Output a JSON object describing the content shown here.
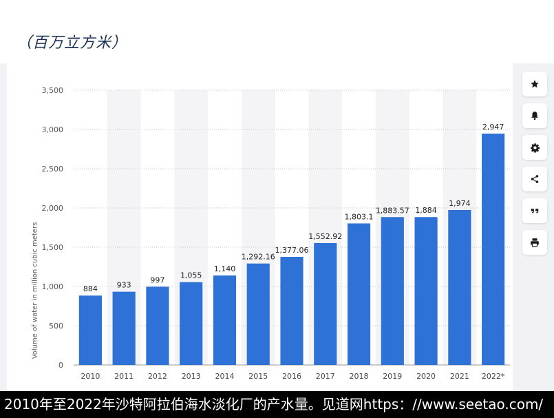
{
  "header": {
    "unit_label": "（百万立方米）"
  },
  "toolbar": {
    "buttons": [
      {
        "icon": "star-icon"
      },
      {
        "icon": "bell-icon"
      },
      {
        "icon": "gear-icon"
      },
      {
        "icon": "share-icon"
      },
      {
        "icon": "quote-icon"
      },
      {
        "icon": "print-icon"
      }
    ]
  },
  "chart_data": {
    "type": "bar",
    "categories": [
      "2010",
      "2011",
      "2012",
      "2013",
      "2014",
      "2015",
      "2016",
      "2017",
      "2018",
      "2019",
      "2020",
      "2021",
      "2022*"
    ],
    "values": [
      884,
      933,
      997,
      1055,
      1140,
      1292.16,
      1377.06,
      1552.92,
      1803.1,
      1883.57,
      1884,
      1974,
      2947
    ],
    "data_labels": [
      "884",
      "933",
      "997",
      "1,055",
      "1,140",
      "1,292.16",
      "1,377.06",
      "1,552.92",
      "1,803.1",
      "1,883.57",
      "1,884",
      "1,974",
      "2,947"
    ],
    "ylabel": "Volume of water in million cubic meters",
    "ylim": [
      0,
      3500
    ],
    "yticks": [
      0,
      500,
      1000,
      1500,
      2000,
      2500,
      3000,
      3500
    ],
    "ytick_labels": [
      "0",
      "500",
      "1,000",
      "1,500",
      "2,000",
      "2,500",
      "3,000",
      "3,500"
    ],
    "bar_color": "#2e72d8",
    "grid": true
  },
  "caption": {
    "text": "2010年至2022年沙特阿拉伯海水淡化厂的产水量。见道网https：//www.seetao.com/"
  }
}
